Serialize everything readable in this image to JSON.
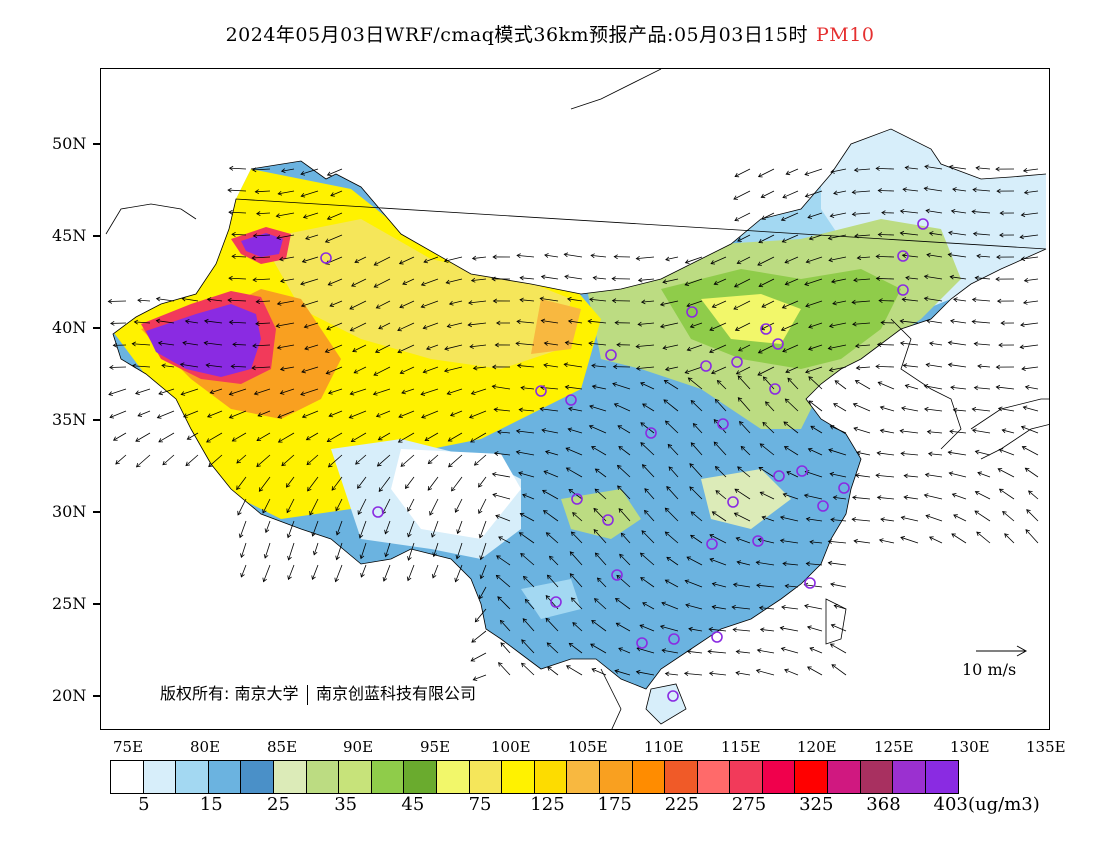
{
  "title": {
    "main": "2024年05月03日WRF/cmaq模式36km预报产品:05月03日15时",
    "pollutant": "PM10",
    "pollutant_color": "#e53030"
  },
  "map": {
    "lat_labels": [
      "50N",
      "45N",
      "40N",
      "35N",
      "30N",
      "25N",
      "20N"
    ],
    "lon_labels": [
      "75E",
      "80E",
      "85E",
      "90E",
      "95E",
      "100E",
      "105E",
      "110E",
      "115E",
      "120E",
      "125E",
      "130E",
      "135E"
    ],
    "copyright_label": "版权所有:",
    "copyright_org1": "南京大学",
    "copyright_org2": "南京创蓝科技有限公司",
    "vector_scale_label": "10 m/s",
    "station_marker_color": "#8a2be2"
  },
  "colorbar": {
    "colors": [
      "#ffffff",
      "#d7eefa",
      "#a3d8f2",
      "#6bb3e0",
      "#4a90c8",
      "#dcebb8",
      "#bcdc82",
      "#c7e37a",
      "#8fcc4a",
      "#6aab2e",
      "#f2f76a",
      "#f5e65a",
      "#fff200",
      "#fddc00",
      "#f8b840",
      "#f9a020",
      "#ff8c00",
      "#f05a28",
      "#ff6a6a",
      "#f23a5a",
      "#f0004c",
      "#ff0000",
      "#d01880",
      "#a83060",
      "#9b30d0",
      "#8a2be2"
    ],
    "labels": [
      "5",
      "15",
      "25",
      "35",
      "45",
      "75",
      "125",
      "175",
      "225",
      "275",
      "325",
      "368",
      "403"
    ],
    "units": "(ug/m3)"
  }
}
